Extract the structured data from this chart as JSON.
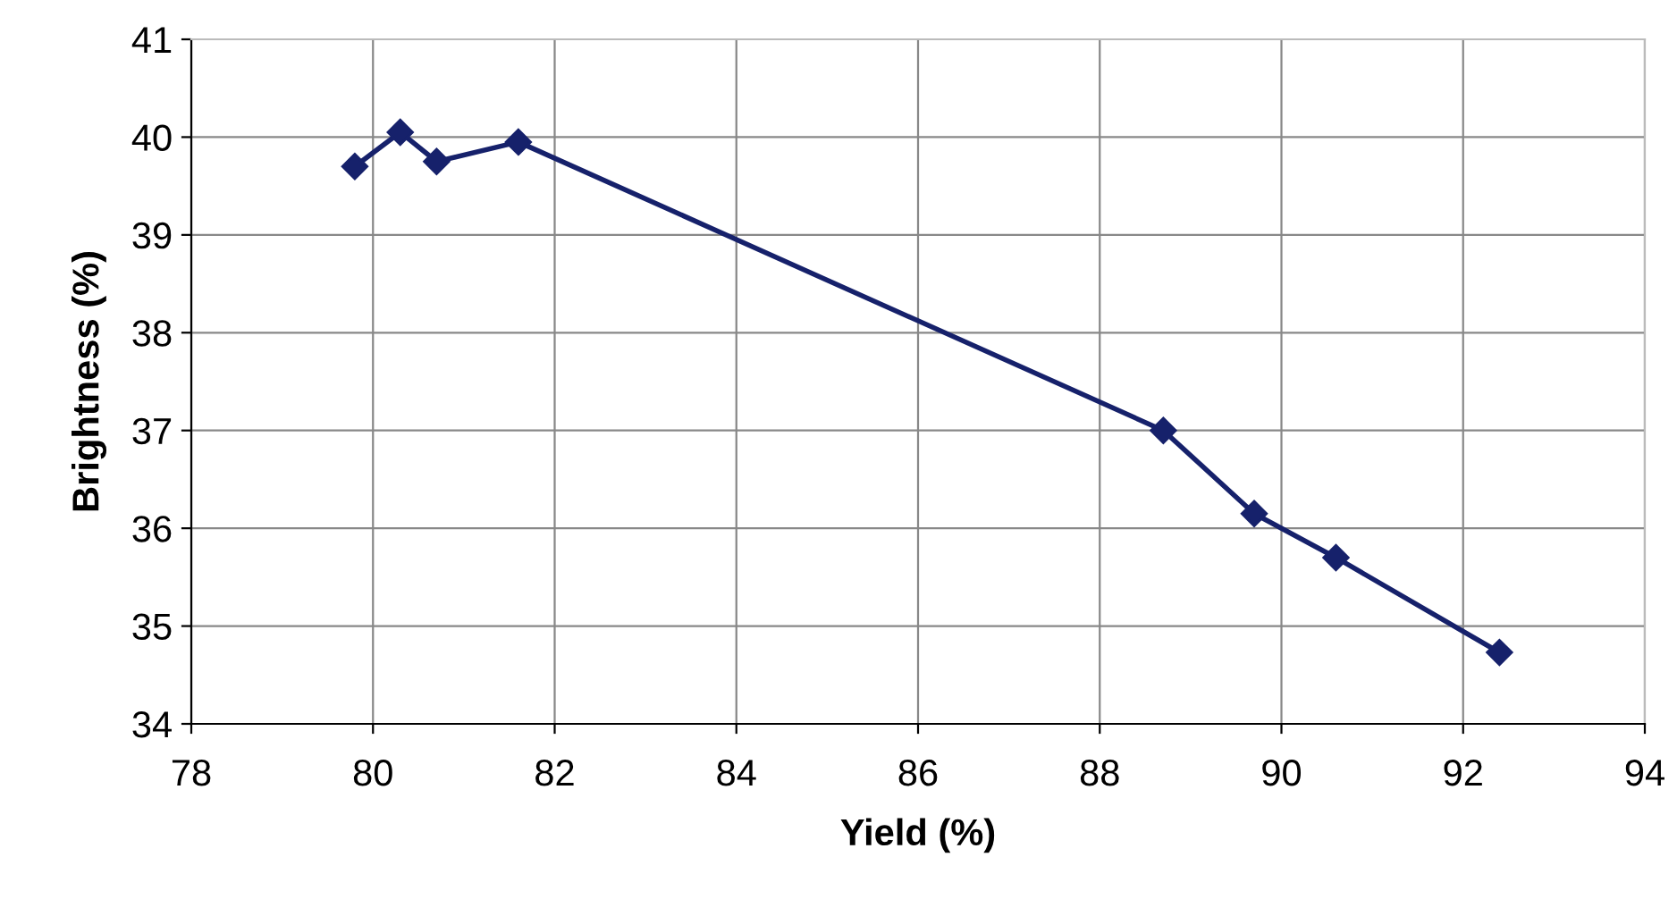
{
  "chart_data": {
    "type": "line",
    "xlabel": "Yield (%)",
    "ylabel": "Brightness (%)",
    "series": [
      {
        "color": "#16216b",
        "x": [
          79.8,
          80.3,
          80.7,
          81.6,
          88.7,
          89.7,
          90.6,
          92.4
        ],
        "values": [
          39.7,
          40.05,
          39.75,
          39.95,
          37.0,
          36.15,
          35.7,
          34.73
        ]
      }
    ],
    "xlim": [
      78,
      94
    ],
    "xticks": [
      78,
      80,
      82,
      84,
      86,
      88,
      90,
      92,
      94
    ],
    "ylim": [
      34,
      41
    ],
    "yticks": [
      34,
      35,
      36,
      37,
      38,
      39,
      40,
      41
    ],
    "grid": true,
    "marker": "diamond",
    "line_style": "solid",
    "legend": false
  }
}
